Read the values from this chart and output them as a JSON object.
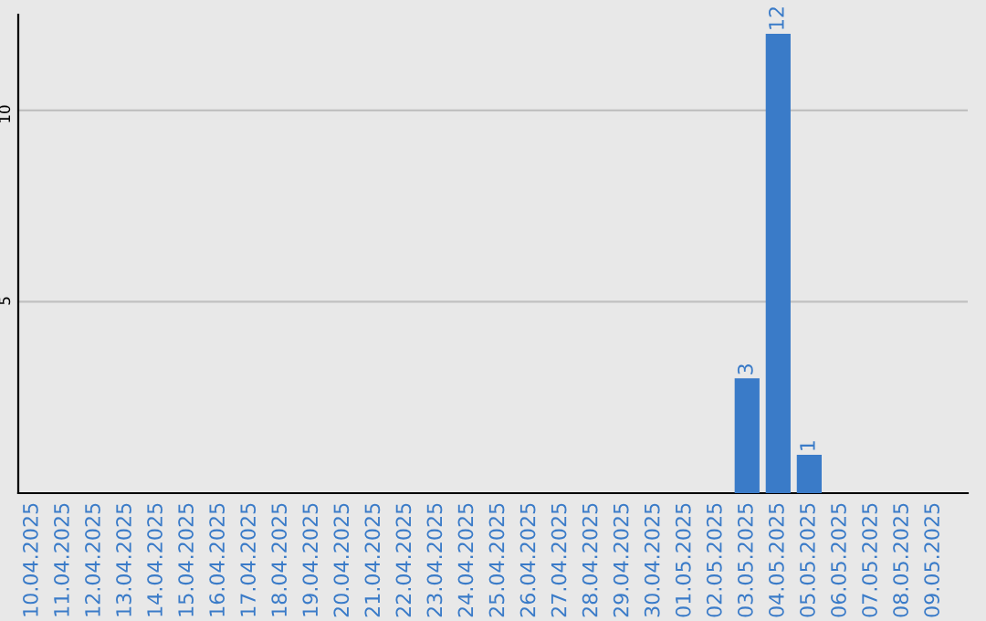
{
  "chart_data": {
    "type": "bar",
    "categories": [
      "10.04.2025",
      "11.04.2025",
      "12.04.2025",
      "13.04.2025",
      "14.04.2025",
      "15.04.2025",
      "16.04.2025",
      "17.04.2025",
      "18.04.2025",
      "19.04.2025",
      "20.04.2025",
      "21.04.2025",
      "22.04.2025",
      "23.04.2025",
      "24.04.2025",
      "25.04.2025",
      "26.04.2025",
      "27.04.2025",
      "28.04.2025",
      "29.04.2025",
      "30.04.2025",
      "01.05.2025",
      "02.05.2025",
      "03.05.2025",
      "04.05.2025",
      "05.05.2025",
      "06.05.2025",
      "07.05.2025",
      "08.05.2025",
      "09.05.2025"
    ],
    "values": [
      0,
      0,
      0,
      0,
      0,
      0,
      0,
      0,
      0,
      0,
      0,
      0,
      0,
      0,
      0,
      0,
      0,
      0,
      0,
      0,
      0,
      0,
      0,
      3,
      12,
      1,
      0,
      0,
      0,
      0
    ],
    "value_labels": [
      null,
      null,
      null,
      null,
      null,
      null,
      null,
      null,
      null,
      null,
      null,
      null,
      null,
      null,
      null,
      null,
      null,
      null,
      null,
      null,
      null,
      null,
      null,
      "3",
      "12",
      "1",
      null,
      null,
      null,
      null
    ],
    "color": "#3a7bc8",
    "ylim": [
      0,
      12.5
    ],
    "yticks": [
      5,
      10
    ],
    "grid": "y"
  }
}
